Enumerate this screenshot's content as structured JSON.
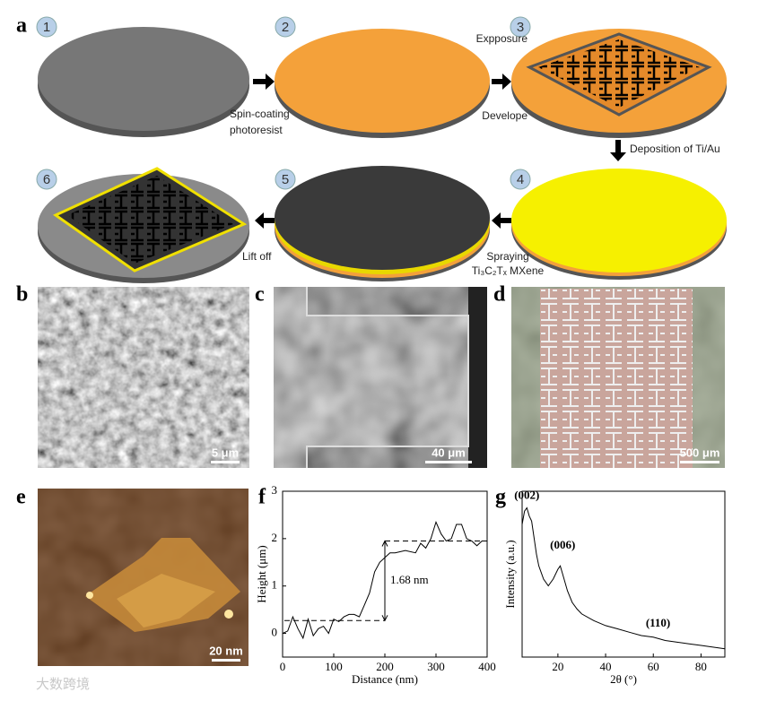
{
  "figure": {
    "panel_labels": [
      "a",
      "b",
      "c",
      "d",
      "e",
      "f",
      "g"
    ],
    "step_numbers": [
      "1",
      "2",
      "3",
      "4",
      "5",
      "6"
    ],
    "step_texts": [
      "Spin-coating",
      "photoresist",
      "Expposure",
      "Develope",
      "Deposition of Ti/Au",
      "Spraying",
      "Ti₃C₂Tₓ MXene",
      "Lift off"
    ],
    "scale_bars": [
      "5 μm",
      "40 μm",
      "500 μm",
      "20 nm"
    ],
    "watermark": "大数跨境"
  },
  "chart_data": [
    {
      "type": "line",
      "xlabel": "Distance (nm)",
      "ylabel": "Height (μm)",
      "x": [
        0,
        10,
        20,
        30,
        40,
        50,
        60,
        70,
        80,
        90,
        100,
        110,
        120,
        130,
        140,
        150,
        160,
        170,
        180,
        190,
        200,
        210,
        220,
        240,
        260,
        270,
        280,
        290,
        300,
        310,
        320,
        330,
        340,
        350,
        360,
        370,
        380,
        390,
        400
      ],
      "series": [
        {
          "color": "#000000",
          "values": [
            0,
            0.05,
            0.35,
            0.1,
            -0.1,
            0.3,
            -0.05,
            0.1,
            0.15,
            0,
            0.3,
            0.25,
            0.35,
            0.4,
            0.4,
            0.35,
            0.6,
            0.85,
            1.3,
            1.5,
            1.6,
            1.7,
            1.7,
            1.75,
            1.7,
            1.9,
            1.8,
            2.0,
            2.35,
            2.1,
            1.95,
            2.0,
            2.3,
            2.3,
            2.0,
            1.95,
            1.85,
            1.95,
            1.95
          ]
        }
      ],
      "xlim": [
        0,
        400
      ],
      "ylim": [
        -0.5,
        3
      ],
      "xticks": [
        0,
        100,
        200,
        300,
        400
      ],
      "yticks": [
        0,
        1,
        2,
        3
      ],
      "reference_lines": [
        0.27,
        1.95
      ],
      "annotation": "1.68 nm"
    },
    {
      "type": "line",
      "xlabel": "2θ (°)",
      "ylabel": "Intensity (a.u.)",
      "x": [
        5,
        6,
        7,
        8,
        9,
        10,
        11,
        12,
        14,
        16,
        18,
        20,
        21,
        22,
        24,
        26,
        28,
        30,
        35,
        40,
        45,
        50,
        55,
        60,
        65,
        70,
        75,
        80,
        85,
        90
      ],
      "series": [
        {
          "color": "#000000",
          "values": [
            0.8,
            0.88,
            0.9,
            0.85,
            0.82,
            0.72,
            0.62,
            0.55,
            0.47,
            0.43,
            0.47,
            0.53,
            0.55,
            0.5,
            0.4,
            0.33,
            0.29,
            0.26,
            0.22,
            0.19,
            0.17,
            0.15,
            0.13,
            0.12,
            0.1,
            0.09,
            0.08,
            0.07,
            0.06,
            0.05
          ]
        }
      ],
      "xlim": [
        5,
        90
      ],
      "ylim": [
        0,
        1
      ],
      "xticks": [
        20,
        40,
        60,
        80
      ],
      "annotations": [
        "(002)",
        "(006)",
        "(110)"
      ]
    }
  ]
}
